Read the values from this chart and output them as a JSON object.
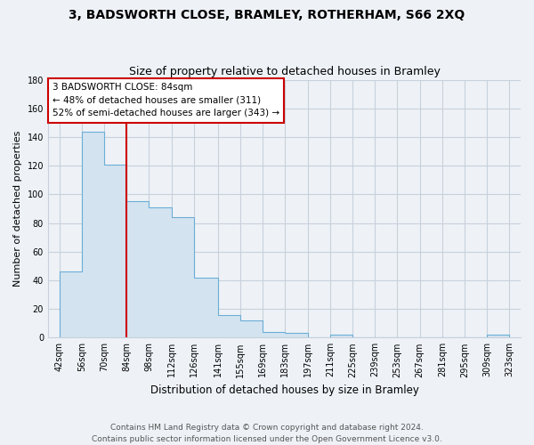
{
  "title": "3, BADSWORTH CLOSE, BRAMLEY, ROTHERHAM, S66 2XQ",
  "subtitle": "Size of property relative to detached houses in Bramley",
  "xlabel": "Distribution of detached houses by size in Bramley",
  "ylabel": "Number of detached properties",
  "bin_edges": [
    42,
    56,
    70,
    84,
    98,
    112,
    126,
    141,
    155,
    169,
    183,
    197,
    211,
    225,
    239,
    253,
    267,
    281,
    295,
    309,
    323
  ],
  "bin_labels": [
    "42sqm",
    "56sqm",
    "70sqm",
    "84sqm",
    "98sqm",
    "112sqm",
    "126sqm",
    "141sqm",
    "155sqm",
    "169sqm",
    "183sqm",
    "197sqm",
    "211sqm",
    "225sqm",
    "239sqm",
    "253sqm",
    "267sqm",
    "281sqm",
    "295sqm",
    "309sqm",
    "323sqm"
  ],
  "counts": [
    46,
    144,
    121,
    95,
    91,
    84,
    42,
    16,
    12,
    4,
    3,
    0,
    2,
    0,
    0,
    0,
    0,
    0,
    0,
    2
  ],
  "bar_fill_color": "#d4e3f0",
  "bar_edge_color": "#6aaed6",
  "vline_x": 84,
  "vline_color": "#cc0000",
  "annotation_text": "3 BADSWORTH CLOSE: 84sqm\n← 48% of detached houses are smaller (311)\n52% of semi-detached houses are larger (343) →",
  "annotation_box_color": "white",
  "annotation_box_edge": "#cc0000",
  "ylim": [
    0,
    180
  ],
  "yticks": [
    0,
    20,
    40,
    60,
    80,
    100,
    120,
    140,
    160,
    180
  ],
  "footer": "Contains HM Land Registry data © Crown copyright and database right 2024.\nContains public sector information licensed under the Open Government Licence v3.0.",
  "background_color": "#eef2f7",
  "plot_bg_color": "#eef2f7",
  "grid_color": "#c8d0db",
  "title_fontsize": 10,
  "subtitle_fontsize": 9,
  "ylabel_fontsize": 8,
  "xlabel_fontsize": 8.5,
  "tick_fontsize": 7,
  "footer_fontsize": 6.5
}
